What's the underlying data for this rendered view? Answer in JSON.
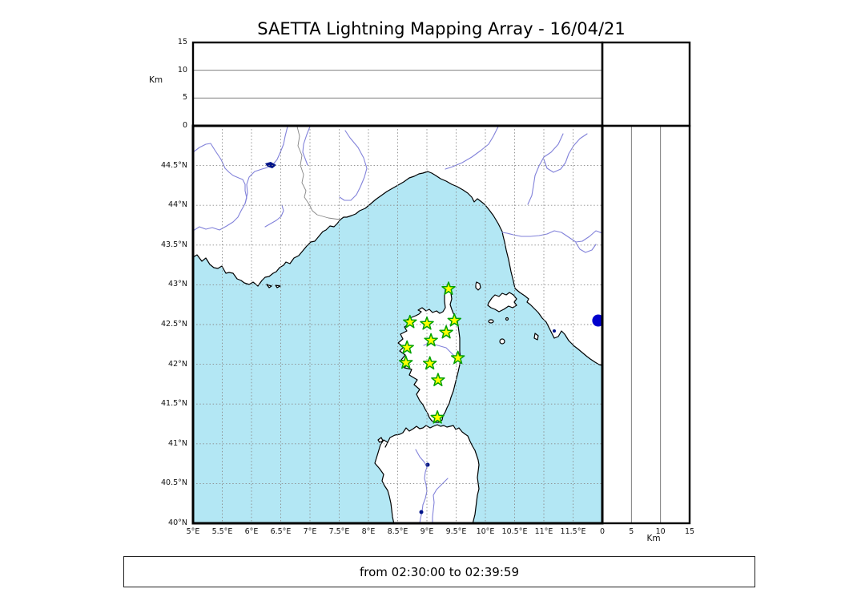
{
  "title": "SAETTA Lightning Mapping Array - 16/04/21",
  "footer": "from 02:30:00 to 02:39:59",
  "colors": {
    "sea": "#b3e7f4",
    "land": "#ffffff",
    "coastline": "#000000",
    "river": "#8282da",
    "lake": "#001489",
    "country_border": "#858585",
    "grid": "#8a8a8a",
    "panel_grid": "#6e6e6e",
    "frame": "#000000",
    "station_fill": "#ffff00",
    "station_stroke": "#00a100",
    "source_point": "#0000cd"
  },
  "map": {
    "lon_min": 5,
    "lon_max": 12,
    "lat_min": 40,
    "lat_max": 45,
    "lon_tick_values": [
      5,
      5.5,
      6,
      6.5,
      7,
      7.5,
      8,
      8.5,
      9,
      9.5,
      10,
      10.5,
      11,
      11.5
    ],
    "lon_tick_labels": [
      "5°E",
      "5.5°E",
      "6°E",
      "6.5°E",
      "7°E",
      "7.5°E",
      "8°E",
      "8.5°E",
      "9°E",
      "9.5°E",
      "10°E",
      "10.5°E",
      "11°E",
      "11.5°E"
    ],
    "lat_tick_values": [
      40,
      40.5,
      41,
      41.5,
      42,
      42.5,
      43,
      43.5,
      44,
      44.5
    ],
    "lat_tick_labels": [
      "40°N",
      "40.5°N",
      "41°N",
      "41.5°N",
      "42°N",
      "42.5°N",
      "43°N",
      "43.5°N",
      "44°N",
      "44.5°N"
    ],
    "grid_style": "dashed"
  },
  "altitude_axis": {
    "label": "Km",
    "min": 0,
    "max": 15,
    "tick_values": [
      0,
      5,
      10,
      15
    ],
    "tick_labels": [
      "0",
      "5",
      "10",
      "15"
    ],
    "grid_values": [
      5,
      10
    ]
  },
  "stations": {
    "marker": "star",
    "positions": [
      {
        "lon": 9.37,
        "lat": 42.95
      },
      {
        "lon": 8.71,
        "lat": 42.53
      },
      {
        "lon": 9.0,
        "lat": 42.51
      },
      {
        "lon": 9.47,
        "lat": 42.55
      },
      {
        "lon": 9.33,
        "lat": 42.4
      },
      {
        "lon": 9.07,
        "lat": 42.3
      },
      {
        "lon": 8.66,
        "lat": 42.21
      },
      {
        "lon": 9.53,
        "lat": 42.08
      },
      {
        "lon": 9.05,
        "lat": 42.01
      },
      {
        "lon": 8.64,
        "lat": 42.02
      },
      {
        "lon": 9.19,
        "lat": 41.8
      },
      {
        "lon": 9.18,
        "lat": 41.33
      }
    ]
  },
  "sources": {
    "marker": "circle",
    "positions": [
      {
        "lon": 11.93,
        "lat": 42.55
      }
    ]
  }
}
